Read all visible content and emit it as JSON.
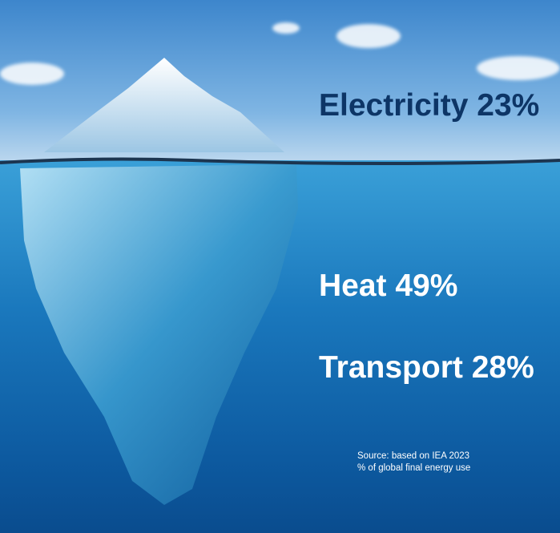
{
  "labels": {
    "electricity": "Electricity 23%",
    "heat": "Heat 49%",
    "transport": "Transport 28%"
  },
  "source": {
    "line1": "Source: based on IEA 2023",
    "line2": "% of global final energy use"
  },
  "colors": {
    "electricity_text": "#0d3566",
    "other_text": "#ffffff"
  }
}
